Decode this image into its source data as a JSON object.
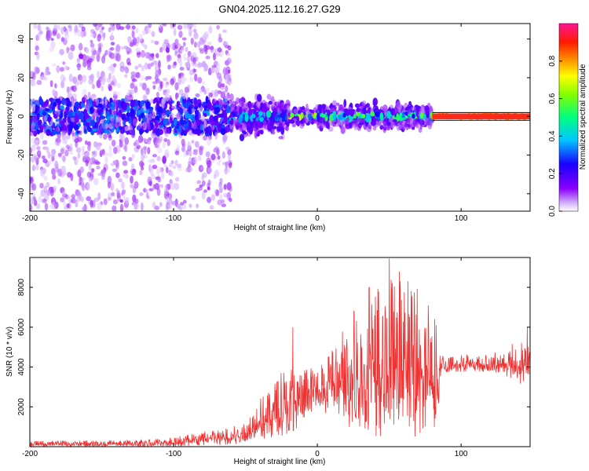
{
  "figure": {
    "title": "GN04.2025.112.16.27.G29"
  },
  "colors": {
    "snr_line": "#f03232",
    "spectrogram_scale": [
      "#ffffff",
      "#8b00ff",
      "#0000ff",
      "#00ffff",
      "#00ff00",
      "#ffff00",
      "#ff8000",
      "#ff0000",
      "#ff1493"
    ]
  },
  "chart_data": [
    {
      "type": "heatmap",
      "title": "",
      "xlabel": "Height of straight line (km)",
      "ylabel": "Frequency (Hz)",
      "xlim": [
        -200,
        148
      ],
      "ylim": [
        -49,
        48
      ],
      "xticks": [
        -200,
        -100,
        0,
        100
      ],
      "yticks": [
        -40,
        -20,
        0,
        20,
        40
      ],
      "grid": false,
      "colorbar": {
        "label": "Normalized spectral amplitude",
        "range": [
          0,
          1
        ],
        "ticks": [
          "0.0",
          "0.2",
          "0.4",
          "0.6",
          "0.8"
        ]
      },
      "regions": [
        {
          "x": [
            -200,
            -60
          ],
          "freq_spread_hz": 48,
          "peak_amplitude": 0.35
        },
        {
          "x": [
            -60,
            -20
          ],
          "freq_spread_hz": 12,
          "peak_amplitude": 0.45
        },
        {
          "x": [
            -20,
            0
          ],
          "freq_spread_hz": 5,
          "peak_amplitude": 0.85
        },
        {
          "x": [
            0,
            80
          ],
          "freq_spread_hz": 8,
          "peak_amplitude": 0.6
        },
        {
          "x": [
            80,
            148
          ],
          "freq_spread_hz": 1,
          "peak_amplitude": 0.85
        }
      ]
    },
    {
      "type": "line",
      "title": "",
      "xlabel": "Height of straight line (km)",
      "ylabel": "SNR (10 * v/v)",
      "xlim": [
        -200,
        148
      ],
      "ylim": [
        0,
        9500
      ],
      "xticks": [
        -200,
        -100,
        0,
        100
      ],
      "yticks": [
        2000,
        4000,
        6000,
        8000
      ],
      "grid": false,
      "envelope": [
        {
          "x": -200,
          "low": 0,
          "high": 300
        },
        {
          "x": -150,
          "low": 0,
          "high": 300
        },
        {
          "x": -100,
          "low": 0,
          "high": 450
        },
        {
          "x": -80,
          "low": 50,
          "high": 800
        },
        {
          "x": -60,
          "low": 100,
          "high": 1000
        },
        {
          "x": -50,
          "low": 200,
          "high": 1300
        },
        {
          "x": -40,
          "low": 300,
          "high": 2600
        },
        {
          "x": -30,
          "low": 400,
          "high": 3500
        },
        {
          "x": -20,
          "low": 600,
          "high": 4000
        },
        {
          "x": -10,
          "low": 1200,
          "high": 3800
        },
        {
          "x": 0,
          "low": 1800,
          "high": 4200
        },
        {
          "x": 10,
          "low": 1500,
          "high": 5000
        },
        {
          "x": 20,
          "low": 1000,
          "high": 6200
        },
        {
          "x": 30,
          "low": 600,
          "high": 7800
        },
        {
          "x": 40,
          "low": 500,
          "high": 8500
        },
        {
          "x": 50,
          "low": 500,
          "high": 8800
        },
        {
          "x": 60,
          "low": 500,
          "high": 8300
        },
        {
          "x": 70,
          "low": 500,
          "high": 8200
        },
        {
          "x": 78,
          "low": 600,
          "high": 7600
        },
        {
          "x": 84,
          "low": 600,
          "high": 6500
        },
        {
          "x": 86,
          "low": 3700,
          "high": 4700
        },
        {
          "x": 110,
          "low": 3800,
          "high": 4600
        },
        {
          "x": 130,
          "low": 3600,
          "high": 4800
        },
        {
          "x": 140,
          "low": 3200,
          "high": 5600
        },
        {
          "x": 148,
          "low": 3000,
          "high": 5200
        }
      ],
      "peaks": [
        {
          "x": -17,
          "y": 6000
        },
        {
          "x": 50,
          "y": 9450
        },
        {
          "x": 57,
          "y": 8800
        },
        {
          "x": 63,
          "y": 8300
        },
        {
          "x": 36,
          "y": 8000
        },
        {
          "x": 146,
          "y": 6000
        }
      ]
    }
  ]
}
